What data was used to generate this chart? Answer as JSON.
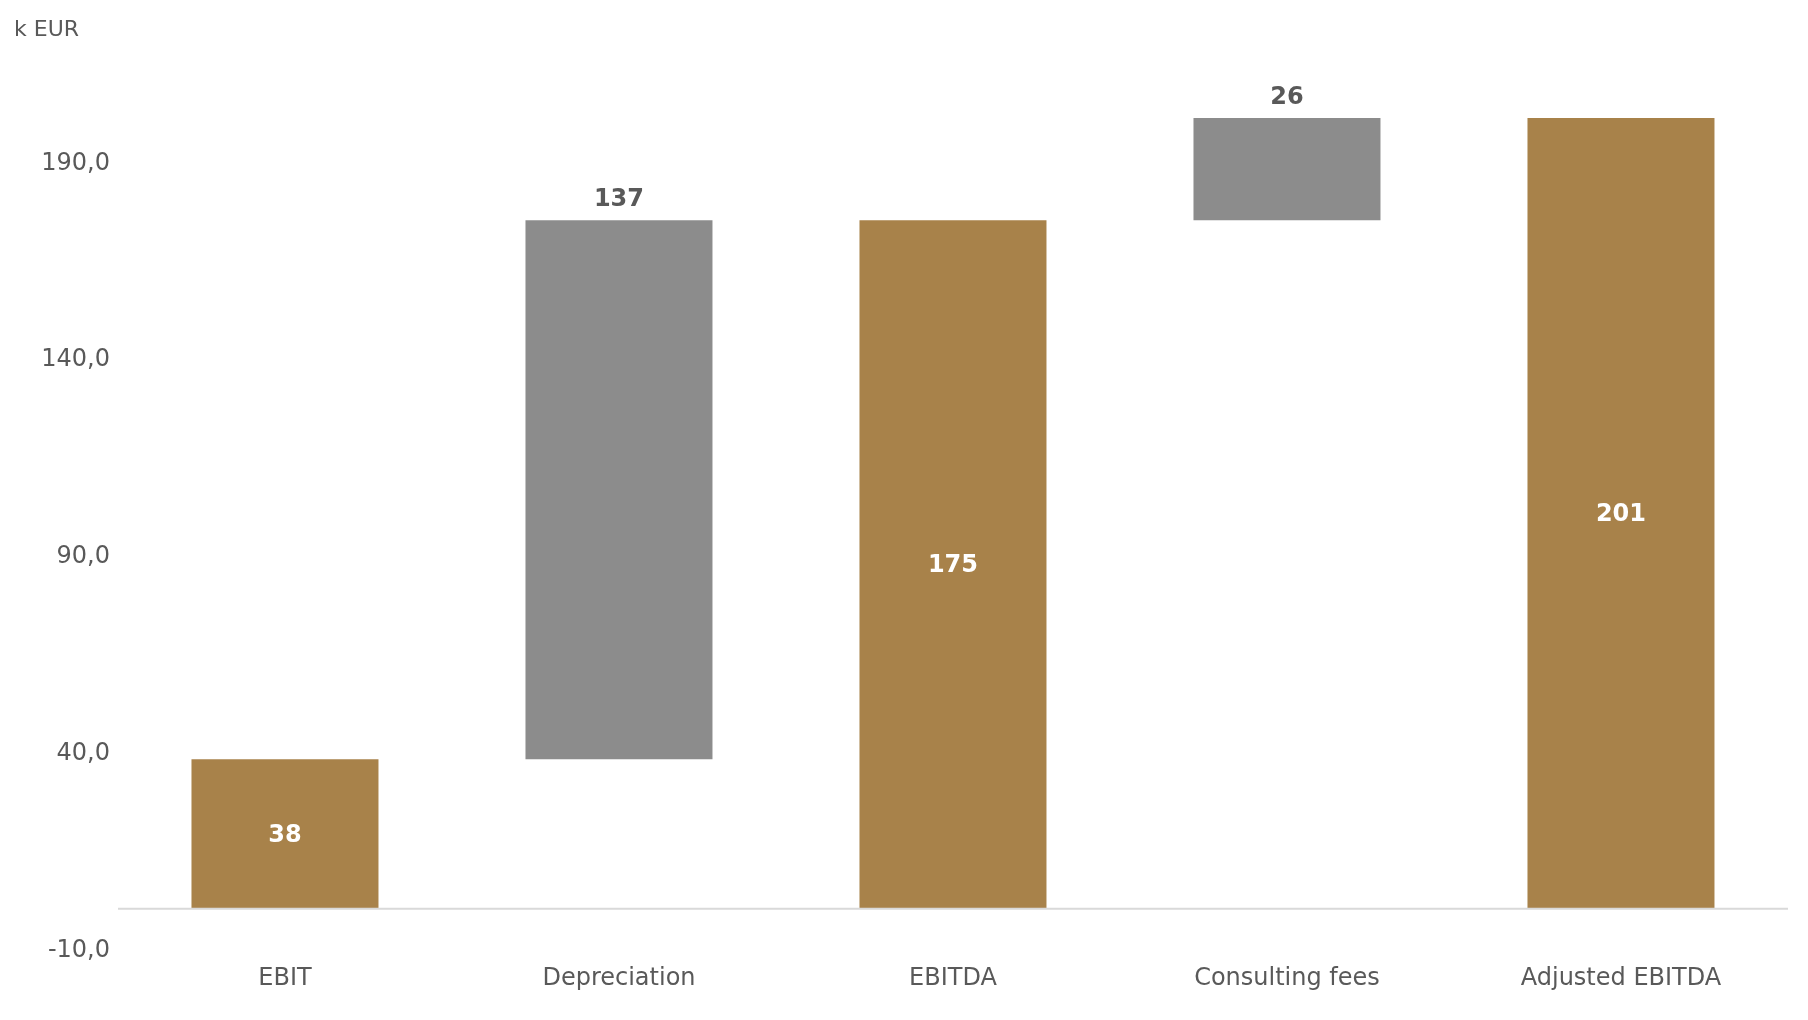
{
  "chart_data": {
    "type": "bar",
    "ylabel": "k EUR",
    "categories": [
      "EBIT",
      "Depreciation",
      "EBITDA",
      "Consulting fees",
      "Adjusted EBITDA"
    ],
    "values": [
      38,
      137,
      175,
      26,
      201
    ],
    "base": [
      0,
      38,
      0,
      175,
      0
    ],
    "colors": [
      "#a8824a",
      "#8c8c8c",
      "#a8824a",
      "#8c8c8c",
      "#a8824a"
    ],
    "ylim": [
      -10,
      201
    ],
    "yticks": [
      {
        "value": -10,
        "label": "-10,0"
      },
      {
        "value": 40,
        "label": "40,0"
      },
      {
        "value": 90,
        "label": "90,0"
      },
      {
        "value": 140,
        "label": "140,0"
      },
      {
        "value": 190,
        "label": "190,0"
      }
    ],
    "data_labels": true,
    "grid": false
  }
}
